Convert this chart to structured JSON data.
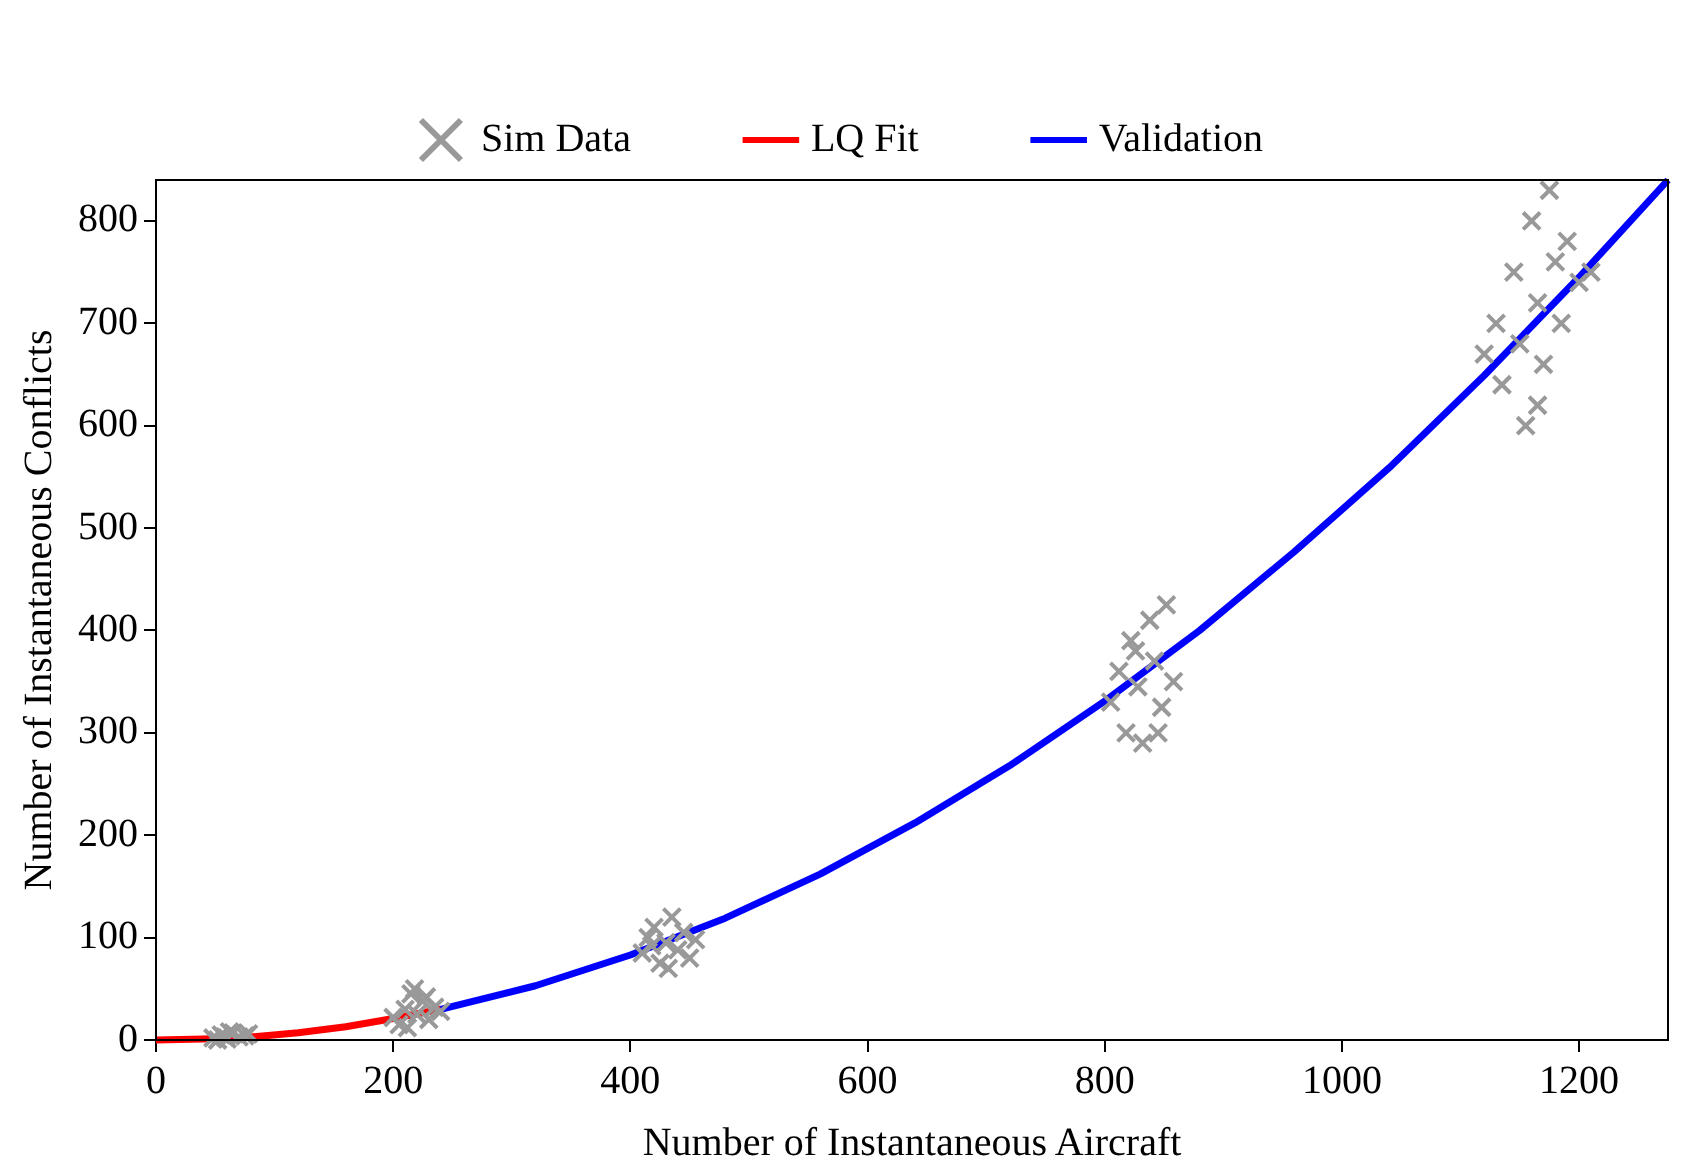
{
  "chart_data": {
    "type": "scatter",
    "xlabel": "Number of Instantaneous Aircraft",
    "ylabel": "Number of Instantaneous Conflicts",
    "xlim": [
      0,
      1275
    ],
    "ylim": [
      0,
      840
    ],
    "xticks": [
      0,
      200,
      400,
      600,
      800,
      1000,
      1200
    ],
    "yticks": [
      0,
      100,
      200,
      300,
      400,
      500,
      600,
      700,
      800
    ],
    "grid": false,
    "legend": "top",
    "series": [
      {
        "name": "Sim Data",
        "marker": "cross",
        "color": "#999999",
        "x": [
          48,
          55,
          60,
          65,
          70,
          75,
          52,
          62,
          78,
          58,
          205,
          210,
          215,
          220,
          225,
          230,
          235,
          212,
          218,
          228,
          240,
          200,
          410,
          415,
          420,
          425,
          430,
          435,
          440,
          445,
          450,
          455,
          432,
          418,
          805,
          812,
          818,
          822,
          828,
          832,
          838,
          842,
          848,
          852,
          858,
          826,
          845,
          1120,
          1130,
          1135,
          1145,
          1150,
          1155,
          1160,
          1165,
          1170,
          1175,
          1180,
          1185,
          1190,
          1200,
          1210,
          1165
        ],
        "values": [
          2,
          5,
          1,
          7,
          3,
          4,
          0,
          8,
          6,
          3,
          15,
          30,
          45,
          25,
          38,
          20,
          32,
          12,
          50,
          42,
          28,
          22,
          85,
          100,
          110,
          75,
          95,
          120,
          88,
          105,
          80,
          98,
          70,
          92,
          330,
          360,
          300,
          390,
          345,
          290,
          410,
          370,
          325,
          425,
          350,
          380,
          300,
          670,
          700,
          640,
          750,
          680,
          600,
          800,
          720,
          660,
          830,
          760,
          700,
          780,
          740,
          750,
          620
        ]
      },
      {
        "name": "LQ Fit",
        "type": "line",
        "marker": "none",
        "line_style": "solid",
        "color": "#ff0000",
        "x": [
          0,
          40,
          80,
          120,
          160,
          200,
          240
        ],
        "values": [
          0,
          1,
          3,
          7,
          13,
          21,
          30
        ]
      },
      {
        "name": "Validation",
        "type": "line",
        "marker": "none",
        "line_style": "solid",
        "color": "#0000ff",
        "x": [
          240,
          320,
          400,
          480,
          560,
          640,
          720,
          800,
          880,
          960,
          1040,
          1120,
          1200,
          1275
        ],
        "values": [
          30,
          53,
          83,
          119,
          162,
          212,
          268,
          331,
          400,
          477,
          559,
          649,
          745,
          840
        ]
      }
    ]
  }
}
